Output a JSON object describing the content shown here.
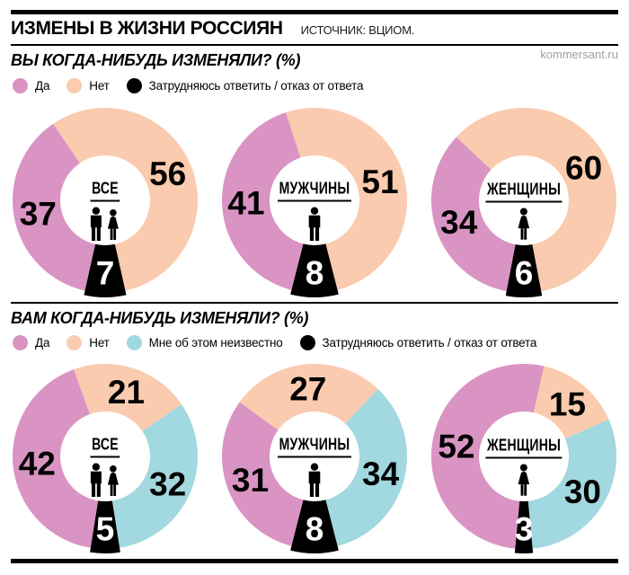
{
  "header": {
    "title": "ИЗМЕНЫ В ЖИЗНИ РОССИЯН",
    "source": "ИСТОЧНИК: ВЦИОМ.",
    "watermark": "kommersant.ru"
  },
  "colors": {
    "yes": "#D994C3",
    "no": "#FACBAE",
    "unknown": "#A2D8DF",
    "refusal": "#000000"
  },
  "chart_data": [
    {
      "type": "donut",
      "title": "ВЫ КОГДА-НИБУДЬ ИЗМЕНЯЛИ? (%)",
      "legend": [
        {
          "key": "yes",
          "label": "Да"
        },
        {
          "key": "no",
          "label": "Нет"
        },
        {
          "key": "refusal",
          "label": "Затрудняюсь ответить / отказ от ответа"
        }
      ],
      "donuts": [
        {
          "label": "ВСЕ",
          "icon": "man-woman-icon",
          "slices": [
            {
              "key": "yes",
              "value": 37
            },
            {
              "key": "no",
              "value": 56
            },
            {
              "key": "refusal",
              "value": 7
            }
          ]
        },
        {
          "label": "МУЖЧИНЫ",
          "icon": "man-icon",
          "slices": [
            {
              "key": "yes",
              "value": 41
            },
            {
              "key": "no",
              "value": 51
            },
            {
              "key": "refusal",
              "value": 8
            }
          ]
        },
        {
          "label": "ЖЕНЩИНЫ",
          "icon": "woman-icon",
          "slices": [
            {
              "key": "yes",
              "value": 34
            },
            {
              "key": "no",
              "value": 60
            },
            {
              "key": "refusal",
              "value": 6
            }
          ]
        }
      ]
    },
    {
      "type": "donut",
      "title": "ВАМ КОГДА-НИБУДЬ ИЗМЕНЯЛИ? (%)",
      "legend": [
        {
          "key": "yes",
          "label": "Да"
        },
        {
          "key": "no",
          "label": "Нет"
        },
        {
          "key": "unknown",
          "label": "Мне об этом неизвестно"
        },
        {
          "key": "refusal",
          "label": "Затрудняюсь ответить / отказ от ответа"
        }
      ],
      "donuts": [
        {
          "label": "ВСЕ",
          "icon": "man-woman-icon",
          "slices": [
            {
              "key": "yes",
              "value": 42
            },
            {
              "key": "no",
              "value": 21
            },
            {
              "key": "unknown",
              "value": 32
            },
            {
              "key": "refusal",
              "value": 5
            }
          ]
        },
        {
          "label": "МУЖЧИНЫ",
          "icon": "man-icon",
          "slices": [
            {
              "key": "yes",
              "value": 31
            },
            {
              "key": "no",
              "value": 27
            },
            {
              "key": "unknown",
              "value": 34
            },
            {
              "key": "refusal",
              "value": 8
            }
          ]
        },
        {
          "label": "ЖЕНЩИНЫ",
          "icon": "woman-icon",
          "slices": [
            {
              "key": "yes",
              "value": 52
            },
            {
              "key": "no",
              "value": 15
            },
            {
              "key": "unknown",
              "value": 30
            },
            {
              "key": "refusal",
              "value": 3
            }
          ]
        }
      ]
    }
  ]
}
